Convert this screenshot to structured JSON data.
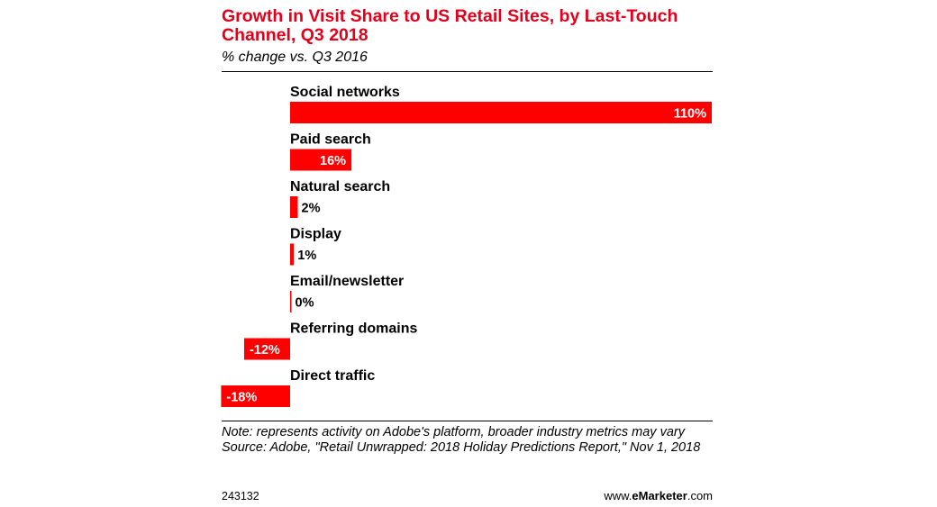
{
  "chart_data": {
    "type": "bar",
    "orientation": "horizontal",
    "title": "Growth in Visit Share to US Retail Sites, by Last-Touch Channel, Q3 2018",
    "subtitle": "% change vs. Q3 2016",
    "categories": [
      "Social networks",
      "Paid search",
      "Natural search",
      "Display",
      "Email/newsletter",
      "Referring domains",
      "Direct traffic"
    ],
    "values": [
      110,
      16,
      2,
      1,
      0,
      -12,
      -18
    ],
    "value_labels": [
      "110%",
      "16%",
      "2%",
      "1%",
      "0%",
      "-12%",
      "-18%"
    ],
    "unit": "%",
    "xlim": [
      -18,
      110
    ],
    "bar_color": "#ff0000",
    "grid": false
  },
  "colors": {
    "title": "#e4001b",
    "bar": "#ff0000"
  },
  "notes": {
    "note": "Note: represents activity on Adobe's platform, broader industry metrics may vary",
    "source": "Source: Adobe, \"Retail Unwrapped: 2018 Holiday Predictions Report,\" Nov 1, 2018"
  },
  "footer": {
    "chart_id": "243132",
    "brand_prefix": "www.",
    "brand_name": "eMarketer",
    "brand_suffix": ".com"
  }
}
